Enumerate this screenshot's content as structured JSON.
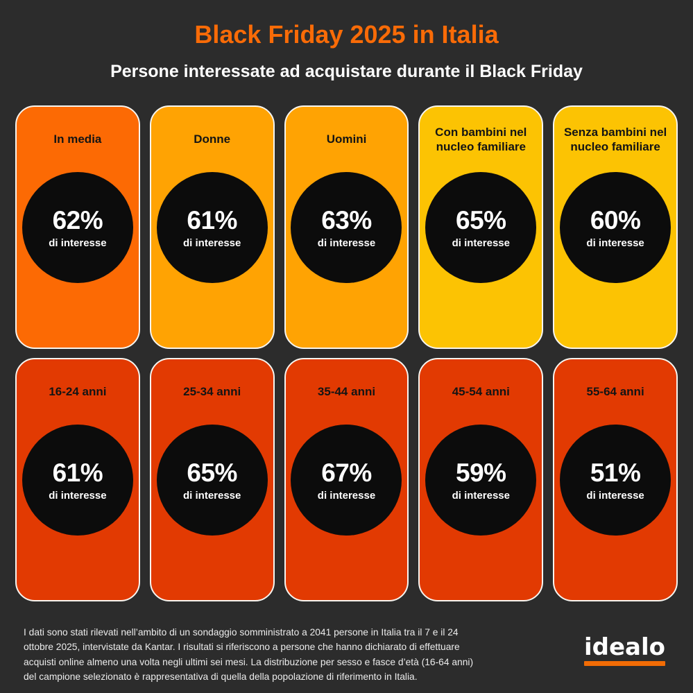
{
  "header": {
    "title": "Black Friday 2025 in Italia",
    "subtitle": "Persone interessate ad acquistare durante il Black Friday"
  },
  "palette": {
    "background": "#2C2C2C",
    "accent_orange": "#F96B07",
    "card_bright_orange": "#FC6A04",
    "card_amber": "#FFA303",
    "card_yellow": "#FCC303",
    "card_red_orange": "#E23A02",
    "circle_black": "#0C0C0C",
    "logo_underline_orange": "#F26C05"
  },
  "cards": [
    {
      "title": "In media",
      "value": "62%",
      "caption": "di interesse",
      "color": "#FC6A04"
    },
    {
      "title": "Donne",
      "value": "61%",
      "caption": "di interesse",
      "color": "#FFA303"
    },
    {
      "title": "Uomini",
      "value": "63%",
      "caption": "di interesse",
      "color": "#FFA303"
    },
    {
      "title": "Con bambini nel nucleo familiare",
      "value": "65%",
      "caption": "di interesse",
      "color": "#FCC303"
    },
    {
      "title": "Senza bambini nel nucleo familiare",
      "value": "60%",
      "caption": "di interesse",
      "color": "#FCC303"
    },
    {
      "title": "16-24 anni",
      "value": "61%",
      "caption": "di interesse",
      "color": "#E23A02"
    },
    {
      "title": "25-34 anni",
      "value": "65%",
      "caption": "di interesse",
      "color": "#E23A02"
    },
    {
      "title": "35-44 anni",
      "value": "67%",
      "caption": "di interesse",
      "color": "#E23A02"
    },
    {
      "title": "45-54 anni",
      "value": "59%",
      "caption": "di interesse",
      "color": "#E23A02"
    },
    {
      "title": "55-64 anni",
      "value": "51%",
      "caption": "di interesse",
      "color": "#E23A02"
    }
  ],
  "footer": {
    "source_text": "I dati sono stati rilevati nell’ambito di un sondaggio somministrato a 2041 persone in Italia tra il 7 e il 24 ottobre 2025, intervistate da Kantar. I risultati si riferiscono a persone che hanno dichiarato di effettuare acquisti online almeno una volta negli ultimi sei mesi. La distribuzione per sesso e fasce d’età (16-64 anni) del campione selezionato è rappresentativa di quella della popolazione di riferimento in Italia.",
    "logo_text": "idealo"
  },
  "chart_data": {
    "type": "table",
    "title": "Black Friday 2025 in Italia",
    "subtitle": "Persone interessate ad acquistare durante il Black Friday",
    "unit": "% di interesse",
    "categories": [
      "In media",
      "Donne",
      "Uomini",
      "Con bambini nel nucleo familiare",
      "Senza bambini nel nucleo familiare",
      "16-24 anni",
      "25-34 anni",
      "35-44 anni",
      "45-54 anni",
      "55-64 anni"
    ],
    "values": [
      62,
      61,
      63,
      65,
      60,
      61,
      65,
      67,
      59,
      51
    ]
  }
}
